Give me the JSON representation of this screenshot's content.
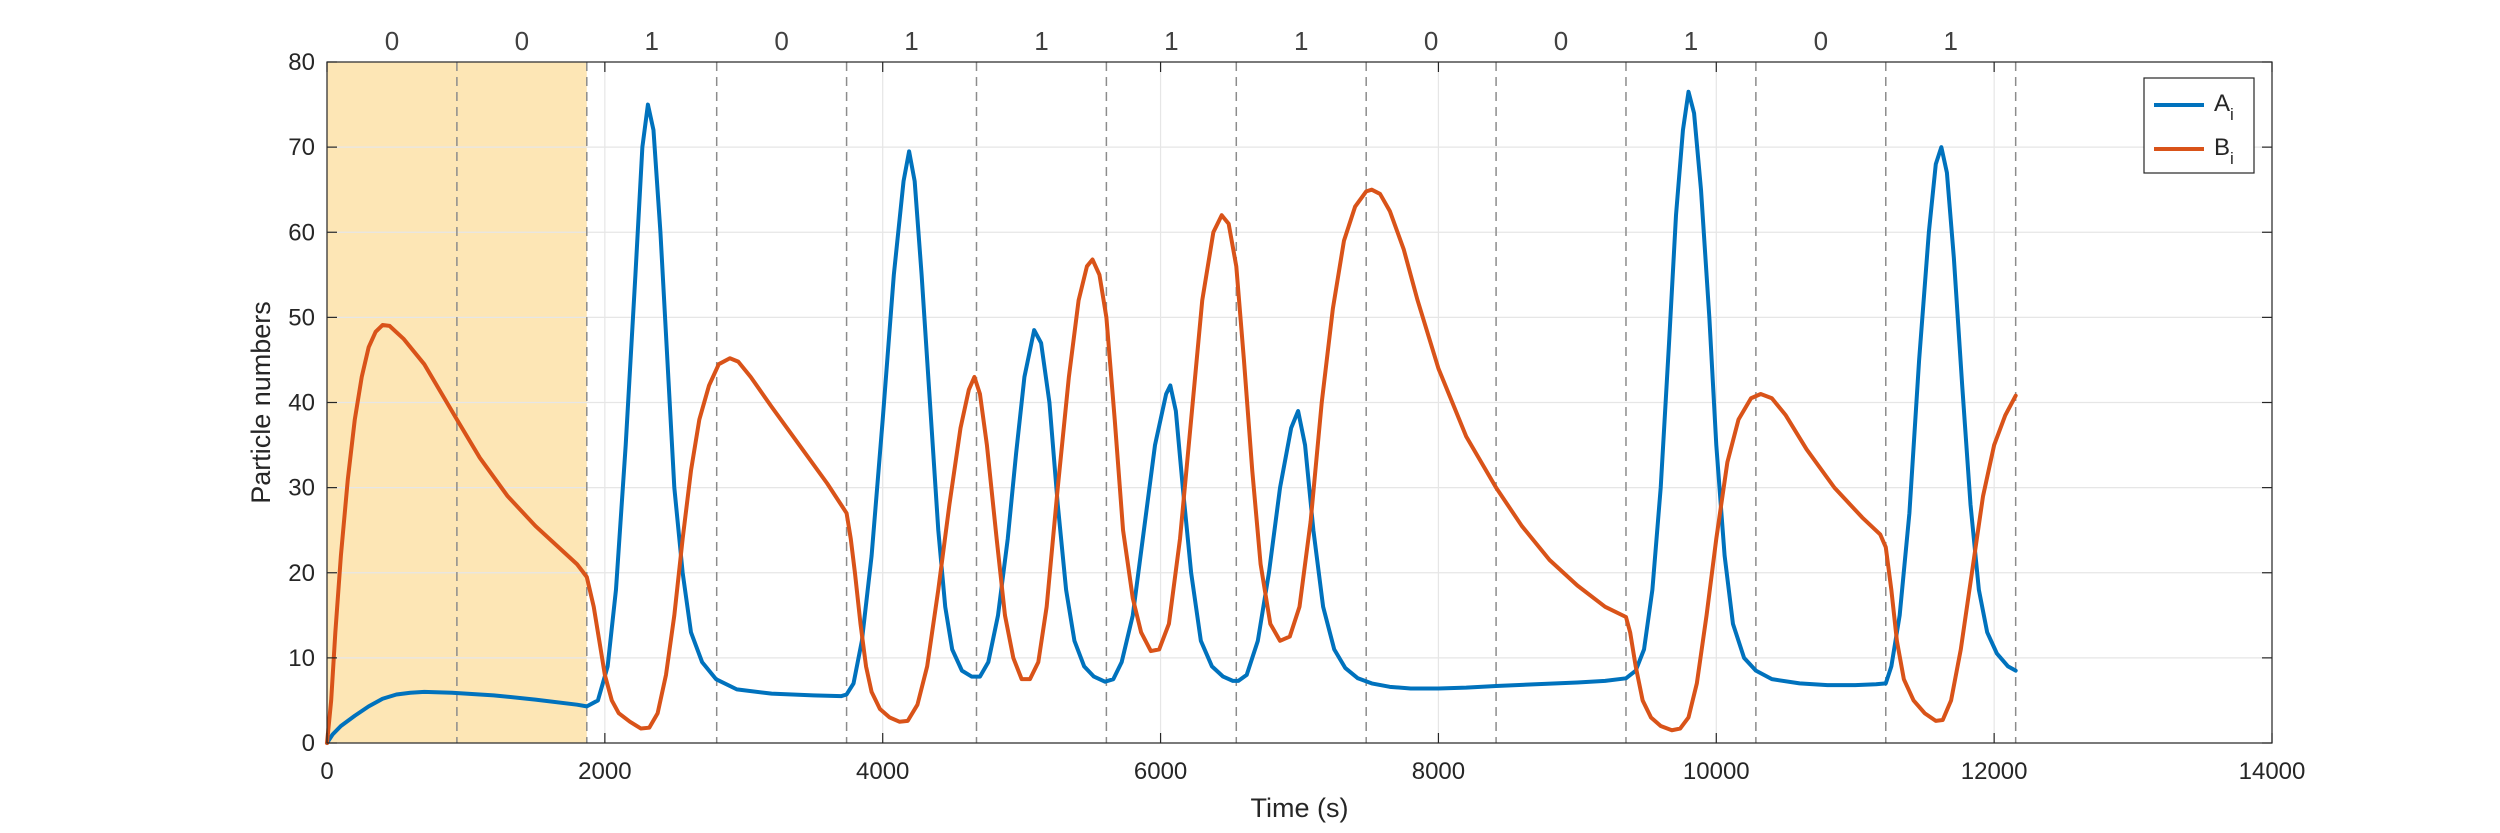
{
  "chart_data": {
    "type": "line",
    "xlabel": "Time (s)",
    "ylabel": "Particle numbers",
    "xlim": [
      0,
      14000
    ],
    "ylim": [
      0,
      80
    ],
    "xticks": [
      0,
      2000,
      4000,
      6000,
      8000,
      10000,
      12000,
      14000
    ],
    "yticks": [
      0,
      10,
      20,
      30,
      40,
      50,
      60,
      70,
      80
    ],
    "grid": true,
    "legend_position": "top-right",
    "colors": {
      "A": "#0072BD",
      "B": "#D95319",
      "shade": "#FDE6B5"
    },
    "highlight_region": [
      0,
      1870
    ],
    "segment_boundaries": [
      935,
      1870,
      2805,
      3740,
      4675,
      5610,
      6545,
      7480,
      8415,
      9350,
      10285,
      11220,
      12155
    ],
    "segment_labels": [
      "0",
      "0",
      "1",
      "0",
      "1",
      "1",
      "1",
      "1",
      "0",
      "0",
      "1",
      "0",
      "1"
    ],
    "series": [
      {
        "name": "A",
        "subscript": "i",
        "color": "#0072BD",
        "points": [
          [
            0,
            0
          ],
          [
            40,
            1
          ],
          [
            100,
            2
          ],
          [
            200,
            3.2
          ],
          [
            300,
            4.3
          ],
          [
            400,
            5.2
          ],
          [
            500,
            5.7
          ],
          [
            600,
            5.9
          ],
          [
            700,
            6.0
          ],
          [
            900,
            5.9
          ],
          [
            1200,
            5.6
          ],
          [
            1500,
            5.1
          ],
          [
            1800,
            4.5
          ],
          [
            1870,
            4.3
          ],
          [
            1950,
            5
          ],
          [
            2020,
            9
          ],
          [
            2080,
            18
          ],
          [
            2150,
            35
          ],
          [
            2220,
            55
          ],
          [
            2270,
            70
          ],
          [
            2310,
            75
          ],
          [
            2350,
            72
          ],
          [
            2400,
            60
          ],
          [
            2450,
            45
          ],
          [
            2500,
            30
          ],
          [
            2560,
            20
          ],
          [
            2620,
            13
          ],
          [
            2700,
            9.5
          ],
          [
            2800,
            7.5
          ],
          [
            2950,
            6.3
          ],
          [
            3200,
            5.8
          ],
          [
            3500,
            5.6
          ],
          [
            3700,
            5.5
          ],
          [
            3740,
            5.7
          ],
          [
            3790,
            7
          ],
          [
            3850,
            12
          ],
          [
            3920,
            22
          ],
          [
            4000,
            38
          ],
          [
            4080,
            55
          ],
          [
            4150,
            66
          ],
          [
            4190,
            69.5
          ],
          [
            4230,
            66
          ],
          [
            4280,
            55
          ],
          [
            4340,
            40
          ],
          [
            4400,
            25
          ],
          [
            4450,
            16
          ],
          [
            4500,
            11
          ],
          [
            4570,
            8.5
          ],
          [
            4640,
            7.8
          ],
          [
            4700,
            7.8
          ],
          [
            4760,
            9.5
          ],
          [
            4830,
            15
          ],
          [
            4900,
            24
          ],
          [
            4960,
            34
          ],
          [
            5020,
            43
          ],
          [
            5090,
            48.5
          ],
          [
            5140,
            47
          ],
          [
            5200,
            40
          ],
          [
            5260,
            28
          ],
          [
            5320,
            18
          ],
          [
            5380,
            12
          ],
          [
            5450,
            9
          ],
          [
            5520,
            7.8
          ],
          [
            5600,
            7.2
          ],
          [
            5660,
            7.5
          ],
          [
            5720,
            9.5
          ],
          [
            5800,
            15
          ],
          [
            5880,
            25
          ],
          [
            5960,
            35
          ],
          [
            6040,
            41
          ],
          [
            6070,
            42
          ],
          [
            6110,
            39
          ],
          [
            6160,
            30
          ],
          [
            6220,
            20
          ],
          [
            6290,
            12
          ],
          [
            6370,
            9
          ],
          [
            6450,
            7.8
          ],
          [
            6520,
            7.3
          ],
          [
            6560,
            7.3
          ],
          [
            6620,
            8
          ],
          [
            6700,
            12
          ],
          [
            6780,
            20
          ],
          [
            6860,
            30
          ],
          [
            6940,
            37
          ],
          [
            6990,
            39
          ],
          [
            7040,
            35
          ],
          [
            7100,
            25
          ],
          [
            7170,
            16
          ],
          [
            7250,
            11
          ],
          [
            7330,
            8.8
          ],
          [
            7420,
            7.6
          ],
          [
            7520,
            7
          ],
          [
            7650,
            6.6
          ],
          [
            7800,
            6.4
          ],
          [
            8000,
            6.4
          ],
          [
            8200,
            6.5
          ],
          [
            8415,
            6.7
          ],
          [
            8700,
            6.9
          ],
          [
            9000,
            7.1
          ],
          [
            9200,
            7.3
          ],
          [
            9350,
            7.6
          ],
          [
            9420,
            8.5
          ],
          [
            9480,
            11
          ],
          [
            9540,
            18
          ],
          [
            9600,
            30
          ],
          [
            9660,
            47
          ],
          [
            9710,
            62
          ],
          [
            9760,
            72
          ],
          [
            9800,
            76.5
          ],
          [
            9840,
            74
          ],
          [
            9890,
            65
          ],
          [
            9950,
            50
          ],
          [
            10000,
            35
          ],
          [
            10060,
            22
          ],
          [
            10120,
            14
          ],
          [
            10200,
            10
          ],
          [
            10285,
            8.5
          ],
          [
            10400,
            7.5
          ],
          [
            10600,
            7
          ],
          [
            10800,
            6.8
          ],
          [
            11000,
            6.8
          ],
          [
            11150,
            6.9
          ],
          [
            11220,
            7
          ],
          [
            11260,
            9
          ],
          [
            11320,
            15
          ],
          [
            11390,
            27
          ],
          [
            11460,
            45
          ],
          [
            11530,
            60
          ],
          [
            11580,
            68
          ],
          [
            11620,
            70
          ],
          [
            11660,
            67
          ],
          [
            11710,
            57
          ],
          [
            11770,
            42
          ],
          [
            11830,
            28
          ],
          [
            11890,
            18
          ],
          [
            11950,
            13
          ],
          [
            12020,
            10.5
          ],
          [
            12100,
            9
          ],
          [
            12155,
            8.5
          ]
        ]
      },
      {
        "name": "B",
        "subscript": "i",
        "color": "#D95319",
        "points": [
          [
            0,
            0
          ],
          [
            30,
            5
          ],
          [
            60,
            13
          ],
          [
            100,
            22
          ],
          [
            150,
            31
          ],
          [
            200,
            38
          ],
          [
            250,
            43
          ],
          [
            300,
            46.5
          ],
          [
            350,
            48.3
          ],
          [
            400,
            49.1
          ],
          [
            450,
            49
          ],
          [
            550,
            47.5
          ],
          [
            700,
            44.5
          ],
          [
            935,
            38
          ],
          [
            1100,
            33.5
          ],
          [
            1300,
            29
          ],
          [
            1500,
            25.5
          ],
          [
            1700,
            22.5
          ],
          [
            1800,
            21
          ],
          [
            1870,
            19.5
          ],
          [
            1920,
            16
          ],
          [
            1960,
            12
          ],
          [
            2000,
            8
          ],
          [
            2050,
            5
          ],
          [
            2100,
            3.5
          ],
          [
            2180,
            2.5
          ],
          [
            2260,
            1.7
          ],
          [
            2320,
            1.8
          ],
          [
            2380,
            3.5
          ],
          [
            2440,
            8
          ],
          [
            2500,
            15
          ],
          [
            2560,
            24
          ],
          [
            2620,
            32
          ],
          [
            2680,
            38
          ],
          [
            2750,
            42
          ],
          [
            2820,
            44.5
          ],
          [
            2900,
            45.2
          ],
          [
            2960,
            44.8
          ],
          [
            3050,
            43
          ],
          [
            3200,
            39.5
          ],
          [
            3400,
            35
          ],
          [
            3600,
            30.5
          ],
          [
            3740,
            27
          ],
          [
            3770,
            24
          ],
          [
            3800,
            20
          ],
          [
            3840,
            14
          ],
          [
            3880,
            9
          ],
          [
            3920,
            6
          ],
          [
            3980,
            4
          ],
          [
            4050,
            3
          ],
          [
            4120,
            2.5
          ],
          [
            4180,
            2.6
          ],
          [
            4250,
            4.5
          ],
          [
            4320,
            9
          ],
          [
            4400,
            18
          ],
          [
            4480,
            28
          ],
          [
            4560,
            37
          ],
          [
            4620,
            41.5
          ],
          [
            4660,
            43
          ],
          [
            4700,
            41
          ],
          [
            4750,
            35
          ],
          [
            4820,
            24
          ],
          [
            4880,
            15
          ],
          [
            4940,
            10
          ],
          [
            5000,
            7.5
          ],
          [
            5060,
            7.5
          ],
          [
            5120,
            9.5
          ],
          [
            5180,
            16
          ],
          [
            5260,
            30
          ],
          [
            5340,
            43
          ],
          [
            5410,
            52
          ],
          [
            5470,
            56
          ],
          [
            5510,
            56.8
          ],
          [
            5560,
            55
          ],
          [
            5610,
            50
          ],
          [
            5670,
            38
          ],
          [
            5730,
            25
          ],
          [
            5800,
            17
          ],
          [
            5860,
            13
          ],
          [
            5930,
            10.8
          ],
          [
            5990,
            11
          ],
          [
            6060,
            14
          ],
          [
            6140,
            24
          ],
          [
            6220,
            38
          ],
          [
            6300,
            52
          ],
          [
            6380,
            60
          ],
          [
            6440,
            62
          ],
          [
            6490,
            61
          ],
          [
            6545,
            56
          ],
          [
            6600,
            45
          ],
          [
            6660,
            32
          ],
          [
            6720,
            21
          ],
          [
            6790,
            14
          ],
          [
            6860,
            12
          ],
          [
            6930,
            12.5
          ],
          [
            7000,
            16
          ],
          [
            7080,
            26
          ],
          [
            7160,
            40
          ],
          [
            7240,
            51
          ],
          [
            7320,
            59
          ],
          [
            7400,
            63
          ],
          [
            7480,
            64.8
          ],
          [
            7520,
            65
          ],
          [
            7580,
            64.5
          ],
          [
            7650,
            62.5
          ],
          [
            7750,
            58
          ],
          [
            7850,
            52
          ],
          [
            8000,
            44
          ],
          [
            8200,
            36
          ],
          [
            8415,
            30
          ],
          [
            8600,
            25.5
          ],
          [
            8800,
            21.5
          ],
          [
            9000,
            18.5
          ],
          [
            9200,
            16
          ],
          [
            9350,
            14.8
          ],
          [
            9380,
            13
          ],
          [
            9420,
            9
          ],
          [
            9470,
            5
          ],
          [
            9530,
            3
          ],
          [
            9600,
            2
          ],
          [
            9680,
            1.5
          ],
          [
            9740,
            1.7
          ],
          [
            9800,
            3
          ],
          [
            9860,
            7
          ],
          [
            9930,
            15
          ],
          [
            10000,
            24
          ],
          [
            10080,
            33
          ],
          [
            10160,
            38
          ],
          [
            10250,
            40.5
          ],
          [
            10320,
            41
          ],
          [
            10400,
            40.5
          ],
          [
            10500,
            38.5
          ],
          [
            10650,
            34.5
          ],
          [
            10850,
            30
          ],
          [
            11050,
            26.5
          ],
          [
            11180,
            24.5
          ],
          [
            11220,
            23
          ],
          [
            11260,
            18
          ],
          [
            11300,
            12
          ],
          [
            11350,
            7.5
          ],
          [
            11420,
            5
          ],
          [
            11500,
            3.5
          ],
          [
            11580,
            2.6
          ],
          [
            11630,
            2.7
          ],
          [
            11690,
            5
          ],
          [
            11760,
            11
          ],
          [
            11840,
            20
          ],
          [
            11920,
            29
          ],
          [
            12000,
            35
          ],
          [
            12080,
            38.5
          ],
          [
            12155,
            40.8
          ]
        ]
      }
    ]
  }
}
